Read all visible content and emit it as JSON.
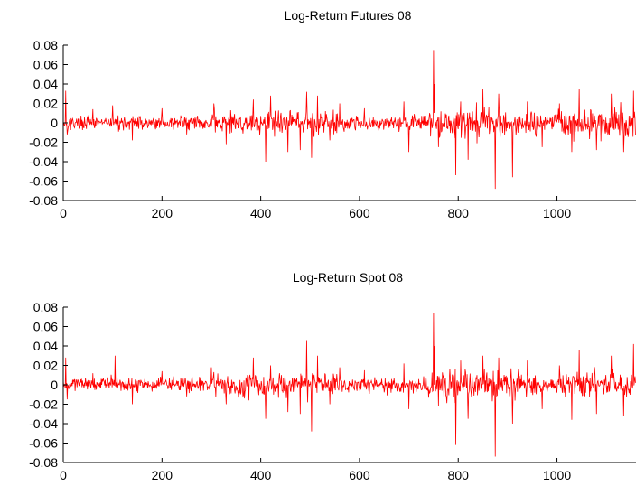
{
  "chart_data": [
    {
      "type": "line",
      "title": "Log-Return Futures 08",
      "xlabel": "",
      "ylabel": "",
      "xlim": [
        0,
        1160
      ],
      "ylim": [
        -0.08,
        0.08
      ],
      "x_ticks": [
        "0",
        "200",
        "400",
        "600",
        "800",
        "1000"
      ],
      "y_ticks": [
        "0.08",
        "0.06",
        "0.04",
        "0.02",
        "0",
        "-0.02",
        "-0.04",
        "-0.06",
        "-0.08"
      ],
      "grid": false,
      "line_color": "#ff0000",
      "n_points": 1160,
      "series": [
        {
          "values_note": "approximate, high-frequency noise around 0",
          "spikes": [
            {
              "x": 5,
              "y": 0.033
            },
            {
              "x": 8,
              "y": -0.012
            },
            {
              "x": 60,
              "y": 0.014
            },
            {
              "x": 100,
              "y": 0.018
            },
            {
              "x": 140,
              "y": -0.018
            },
            {
              "x": 200,
              "y": 0.015
            },
            {
              "x": 250,
              "y": -0.012
            },
            {
              "x": 305,
              "y": 0.02
            },
            {
              "x": 330,
              "y": -0.022
            },
            {
              "x": 385,
              "y": 0.024
            },
            {
              "x": 410,
              "y": -0.04
            },
            {
              "x": 420,
              "y": 0.028
            },
            {
              "x": 455,
              "y": -0.03
            },
            {
              "x": 480,
              "y": -0.028
            },
            {
              "x": 493,
              "y": 0.032
            },
            {
              "x": 503,
              "y": -0.036
            },
            {
              "x": 515,
              "y": 0.028
            },
            {
              "x": 540,
              "y": -0.018
            },
            {
              "x": 560,
              "y": 0.02
            },
            {
              "x": 610,
              "y": 0.015
            },
            {
              "x": 690,
              "y": 0.022
            },
            {
              "x": 700,
              "y": -0.03
            },
            {
              "x": 750,
              "y": 0.075
            },
            {
              "x": 752,
              "y": 0.04
            },
            {
              "x": 760,
              "y": -0.025
            },
            {
              "x": 795,
              "y": -0.054
            },
            {
              "x": 805,
              "y": 0.022
            },
            {
              "x": 820,
              "y": -0.038
            },
            {
              "x": 850,
              "y": 0.035
            },
            {
              "x": 875,
              "y": -0.068
            },
            {
              "x": 882,
              "y": 0.03
            },
            {
              "x": 910,
              "y": -0.056
            },
            {
              "x": 940,
              "y": 0.022
            },
            {
              "x": 970,
              "y": -0.025
            },
            {
              "x": 1005,
              "y": 0.02
            },
            {
              "x": 1030,
              "y": -0.03
            },
            {
              "x": 1045,
              "y": 0.035
            },
            {
              "x": 1080,
              "y": -0.028
            },
            {
              "x": 1110,
              "y": 0.03
            },
            {
              "x": 1135,
              "y": -0.03
            },
            {
              "x": 1155,
              "y": 0.033
            }
          ]
        }
      ]
    },
    {
      "type": "line",
      "title": "Log-Return Spot 08",
      "xlabel": "",
      "ylabel": "",
      "xlim": [
        0,
        1160
      ],
      "ylim": [
        -0.08,
        0.08
      ],
      "x_ticks": [
        "0",
        "200",
        "400",
        "600",
        "800",
        "1000"
      ],
      "y_ticks": [
        "0.08",
        "0.06",
        "0.04",
        "0.02",
        "0",
        "-0.02",
        "-0.04",
        "-0.06",
        "-0.08"
      ],
      "grid": false,
      "line_color": "#ff0000",
      "n_points": 1160,
      "series": [
        {
          "values_note": "approximate, high-frequency noise around 0",
          "spikes": [
            {
              "x": 5,
              "y": 0.028
            },
            {
              "x": 8,
              "y": -0.015
            },
            {
              "x": 60,
              "y": 0.012
            },
            {
              "x": 105,
              "y": 0.03
            },
            {
              "x": 140,
              "y": -0.02
            },
            {
              "x": 200,
              "y": 0.014
            },
            {
              "x": 250,
              "y": -0.012
            },
            {
              "x": 300,
              "y": 0.018
            },
            {
              "x": 330,
              "y": -0.02
            },
            {
              "x": 385,
              "y": 0.028
            },
            {
              "x": 410,
              "y": -0.035
            },
            {
              "x": 420,
              "y": 0.02
            },
            {
              "x": 455,
              "y": -0.028
            },
            {
              "x": 480,
              "y": -0.03
            },
            {
              "x": 493,
              "y": 0.046
            },
            {
              "x": 503,
              "y": -0.048
            },
            {
              "x": 515,
              "y": 0.03
            },
            {
              "x": 540,
              "y": -0.02
            },
            {
              "x": 560,
              "y": 0.018
            },
            {
              "x": 610,
              "y": 0.015
            },
            {
              "x": 690,
              "y": 0.022
            },
            {
              "x": 700,
              "y": -0.025
            },
            {
              "x": 750,
              "y": 0.074
            },
            {
              "x": 752,
              "y": 0.04
            },
            {
              "x": 760,
              "y": -0.022
            },
            {
              "x": 795,
              "y": -0.062
            },
            {
              "x": 805,
              "y": 0.025
            },
            {
              "x": 820,
              "y": -0.035
            },
            {
              "x": 850,
              "y": 0.03
            },
            {
              "x": 875,
              "y": -0.074
            },
            {
              "x": 882,
              "y": 0.028
            },
            {
              "x": 910,
              "y": -0.04
            },
            {
              "x": 940,
              "y": 0.025
            },
            {
              "x": 970,
              "y": -0.025
            },
            {
              "x": 1005,
              "y": 0.02
            },
            {
              "x": 1030,
              "y": -0.036
            },
            {
              "x": 1045,
              "y": 0.036
            },
            {
              "x": 1080,
              "y": -0.03
            },
            {
              "x": 1110,
              "y": 0.03
            },
            {
              "x": 1135,
              "y": -0.032
            },
            {
              "x": 1155,
              "y": 0.042
            }
          ]
        }
      ]
    }
  ]
}
